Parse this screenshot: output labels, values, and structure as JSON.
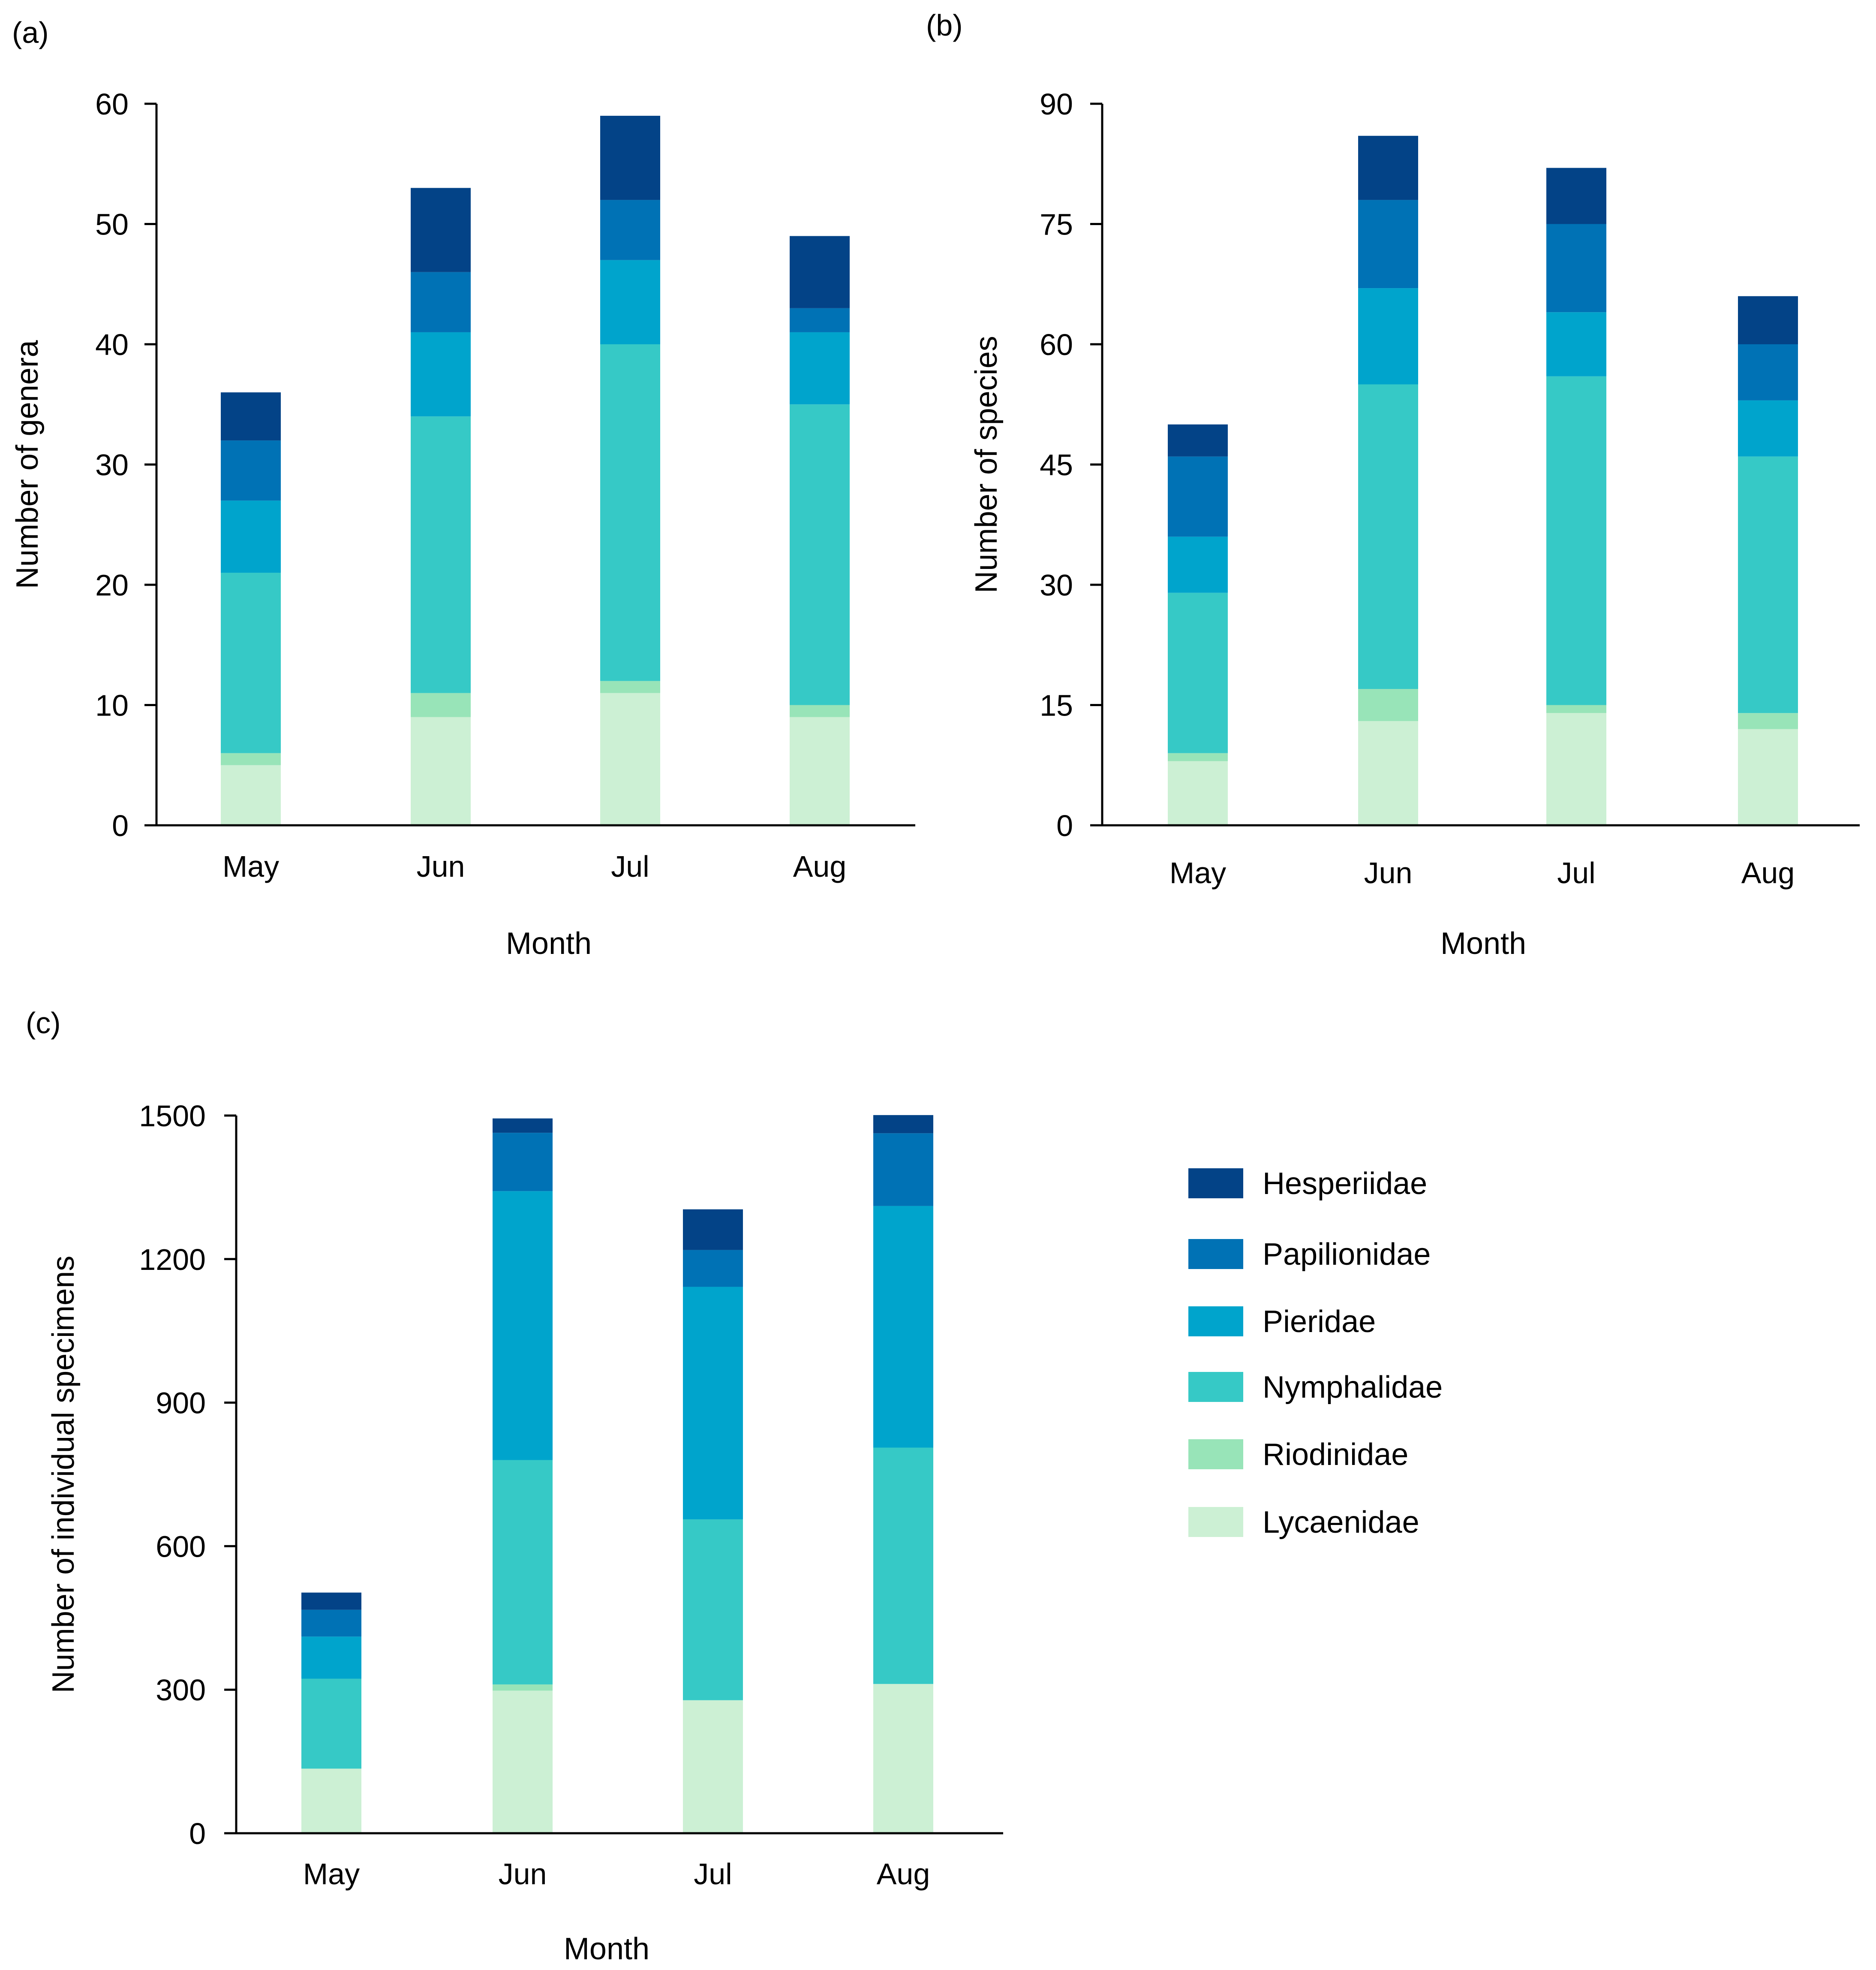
{
  "chart_data": [
    {
      "panel_label": "(a)",
      "type": "bar",
      "stacked": true,
      "categories": [
        "May",
        "Jun",
        "Jul",
        "Aug"
      ],
      "xlabel": "Month",
      "ylabel": "Number of genera",
      "ylim": [
        0,
        60
      ],
      "yticks": [
        "0",
        "10",
        "20",
        "30",
        "40",
        "50",
        "60"
      ],
      "series": [
        {
          "name": "Lycaenidae",
          "values": [
            5,
            9,
            11,
            9
          ]
        },
        {
          "name": "Riodinidae",
          "values": [
            1,
            2,
            1,
            1
          ]
        },
        {
          "name": "Nymphalidae",
          "values": [
            15,
            23,
            28,
            25
          ]
        },
        {
          "name": "Pieridae",
          "values": [
            6,
            7,
            7,
            6
          ]
        },
        {
          "name": "Papilionidae",
          "values": [
            5,
            5,
            5,
            2
          ]
        },
        {
          "name": "Hesperiidae",
          "values": [
            4,
            7,
            7,
            6
          ]
        }
      ]
    },
    {
      "panel_label": "(b)",
      "type": "bar",
      "stacked": true,
      "categories": [
        "May",
        "Jun",
        "Jul",
        "Aug"
      ],
      "xlabel": "Month",
      "ylabel": "Number of species",
      "ylim": [
        0,
        90
      ],
      "yticks": [
        "0",
        "15",
        "30",
        "45",
        "60",
        "75",
        "90"
      ],
      "series": [
        {
          "name": "Lycaenidae",
          "values": [
            8,
            13,
            14,
            12
          ]
        },
        {
          "name": "Riodinidae",
          "values": [
            1,
            4,
            1,
            2
          ]
        },
        {
          "name": "Nymphalidae",
          "values": [
            20,
            38,
            41,
            32
          ]
        },
        {
          "name": "Pieridae",
          "values": [
            7,
            12,
            8,
            7
          ]
        },
        {
          "name": "Papilionidae",
          "values": [
            10,
            11,
            11,
            7
          ]
        },
        {
          "name": "Hesperiidae",
          "values": [
            4,
            8,
            7,
            6
          ]
        }
      ]
    },
    {
      "panel_label": "(c)",
      "type": "bar",
      "stacked": true,
      "categories": [
        "May",
        "Jun",
        "Jul",
        "Aug"
      ],
      "xlabel": "Month",
      "ylabel": "Number of individual specimens",
      "ylim": [
        0,
        1500
      ],
      "yticks": [
        "0",
        "300",
        "600",
        "900",
        "1200",
        "1500"
      ],
      "series": [
        {
          "name": "Lycaenidae",
          "values": [
            135,
            298,
            278,
            312
          ]
        },
        {
          "name": "Riodinidae",
          "values": [
            0,
            13,
            0,
            0
          ]
        },
        {
          "name": "Nymphalidae",
          "values": [
            188,
            469,
            378,
            494
          ]
        },
        {
          "name": "Pieridae",
          "values": [
            88,
            562,
            486,
            505
          ]
        },
        {
          "name": "Papilionidae",
          "values": [
            56,
            122,
            77,
            152
          ]
        },
        {
          "name": "Hesperiidae",
          "values": [
            36,
            30,
            85,
            38
          ]
        }
      ]
    }
  ],
  "legend": [
    {
      "name": "Hesperiidae",
      "color": "#034387"
    },
    {
      "name": "Papilionidae",
      "color": "#0072B5"
    },
    {
      "name": "Pieridae",
      "color": "#00A4CC"
    },
    {
      "name": "Nymphalidae",
      "color": "#36C9C6"
    },
    {
      "name": "Riodinidae",
      "color": "#98E4B8"
    },
    {
      "name": "Lycaenidae",
      "color": "#CCF0D4"
    }
  ]
}
